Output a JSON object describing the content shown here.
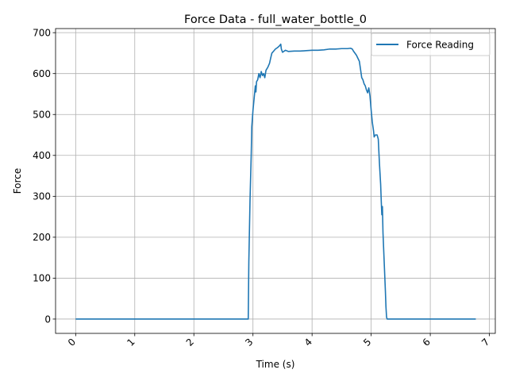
{
  "chart_data": {
    "type": "line",
    "title": "Force Data - full_water_bottle_0",
    "xlabel": "Time (s)",
    "ylabel": "Force",
    "xlim": [
      -0.34,
      7.1
    ],
    "ylim": [
      -35,
      710
    ],
    "xticks": [
      0,
      1,
      2,
      3,
      4,
      5,
      6,
      7
    ],
    "xtick_labels": [
      "0",
      "1",
      "2",
      "3",
      "4",
      "5",
      "6",
      "7"
    ],
    "xtick_rotation": 45,
    "yticks": [
      0,
      100,
      200,
      300,
      400,
      500,
      600,
      700
    ],
    "ytick_labels": [
      "0",
      "100",
      "200",
      "300",
      "400",
      "500",
      "600",
      "700"
    ],
    "grid": true,
    "legend": {
      "position": "top-right"
    },
    "series": [
      {
        "name": "Force Reading",
        "color": "#1f77b4",
        "points": [
          [
            0.0,
            0
          ],
          [
            1.0,
            0
          ],
          [
            2.0,
            0
          ],
          [
            2.9,
            0
          ],
          [
            2.92,
            0
          ],
          [
            2.93,
            140
          ],
          [
            2.95,
            290
          ],
          [
            2.97,
            400
          ],
          [
            2.98,
            470
          ],
          [
            3.0,
            510
          ],
          [
            3.02,
            540
          ],
          [
            3.04,
            570
          ],
          [
            3.05,
            555
          ],
          [
            3.06,
            580
          ],
          [
            3.08,
            585
          ],
          [
            3.1,
            600
          ],
          [
            3.12,
            590
          ],
          [
            3.14,
            605
          ],
          [
            3.16,
            595
          ],
          [
            3.18,
            600
          ],
          [
            3.2,
            590
          ],
          [
            3.22,
            608
          ],
          [
            3.25,
            615
          ],
          [
            3.28,
            625
          ],
          [
            3.3,
            638
          ],
          [
            3.32,
            650
          ],
          [
            3.35,
            655
          ],
          [
            3.38,
            660
          ],
          [
            3.4,
            662
          ],
          [
            3.42,
            664
          ],
          [
            3.45,
            668
          ],
          [
            3.47,
            672
          ],
          [
            3.48,
            660
          ],
          [
            3.5,
            652
          ],
          [
            3.55,
            657
          ],
          [
            3.6,
            654
          ],
          [
            3.7,
            655
          ],
          [
            3.8,
            655
          ],
          [
            3.9,
            656
          ],
          [
            4.0,
            657
          ],
          [
            4.1,
            657
          ],
          [
            4.2,
            658
          ],
          [
            4.3,
            660
          ],
          [
            4.4,
            660
          ],
          [
            4.5,
            661
          ],
          [
            4.6,
            661
          ],
          [
            4.65,
            662
          ],
          [
            4.68,
            660
          ],
          [
            4.7,
            655
          ],
          [
            4.75,
            645
          ],
          [
            4.8,
            630
          ],
          [
            4.82,
            610
          ],
          [
            4.84,
            590
          ],
          [
            4.86,
            585
          ],
          [
            4.88,
            575
          ],
          [
            4.9,
            570
          ],
          [
            4.92,
            560
          ],
          [
            4.94,
            553
          ],
          [
            4.96,
            565
          ],
          [
            4.98,
            545
          ],
          [
            5.0,
            510
          ],
          [
            5.02,
            480
          ],
          [
            5.04,
            460
          ],
          [
            5.05,
            445
          ],
          [
            5.07,
            450
          ],
          [
            5.1,
            450
          ],
          [
            5.12,
            440
          ],
          [
            5.14,
            380
          ],
          [
            5.16,
            330
          ],
          [
            5.17,
            290
          ],
          [
            5.18,
            255
          ],
          [
            5.19,
            275
          ],
          [
            5.2,
            210
          ],
          [
            5.22,
            140
          ],
          [
            5.24,
            70
          ],
          [
            5.25,
            30
          ],
          [
            5.26,
            5
          ],
          [
            5.27,
            0
          ],
          [
            5.5,
            0
          ],
          [
            6.0,
            0
          ],
          [
            6.5,
            0
          ],
          [
            6.77,
            0
          ]
        ]
      }
    ]
  }
}
